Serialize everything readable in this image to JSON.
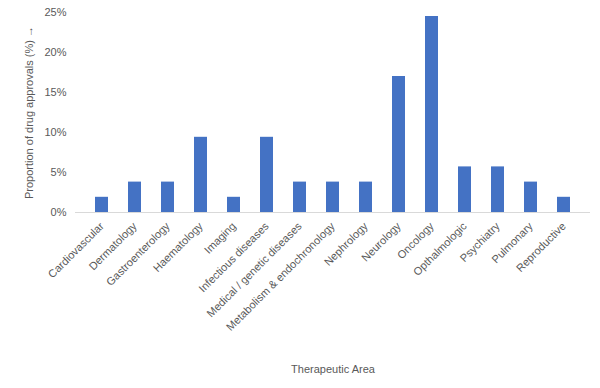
{
  "chart_data": {
    "type": "bar",
    "x_label": "Therapeutic Area",
    "y_label": "Proportion of drug approvals (%)",
    "categories": [
      "Cardiovascular",
      "Dermatology",
      "Gastroenterology",
      "Haematology",
      "Imaging",
      "Infectious diseases",
      "Medical / genetic diseases",
      "Metabolism & endochronology",
      "Nephrology",
      "Neurology",
      "Oncology",
      "Opthalmologic",
      "Psychiatry",
      "Pulmonary",
      "Reproductive"
    ],
    "values": [
      1.9,
      3.8,
      3.8,
      9.4,
      1.9,
      9.4,
      3.8,
      3.8,
      3.8,
      17.0,
      24.5,
      5.7,
      5.7,
      3.8,
      1.9
    ],
    "color": "#4472c4",
    "ylim": [
      0,
      25
    ],
    "yticks": [
      {
        "value": 0,
        "label": "0%"
      },
      {
        "value": 5,
        "label": "5%"
      },
      {
        "value": 10,
        "label": "10%"
      },
      {
        "value": 15,
        "label": "15%"
      },
      {
        "value": 20,
        "label": "20%"
      },
      {
        "value": 25,
        "label": "25%"
      }
    ],
    "grid": false
  }
}
